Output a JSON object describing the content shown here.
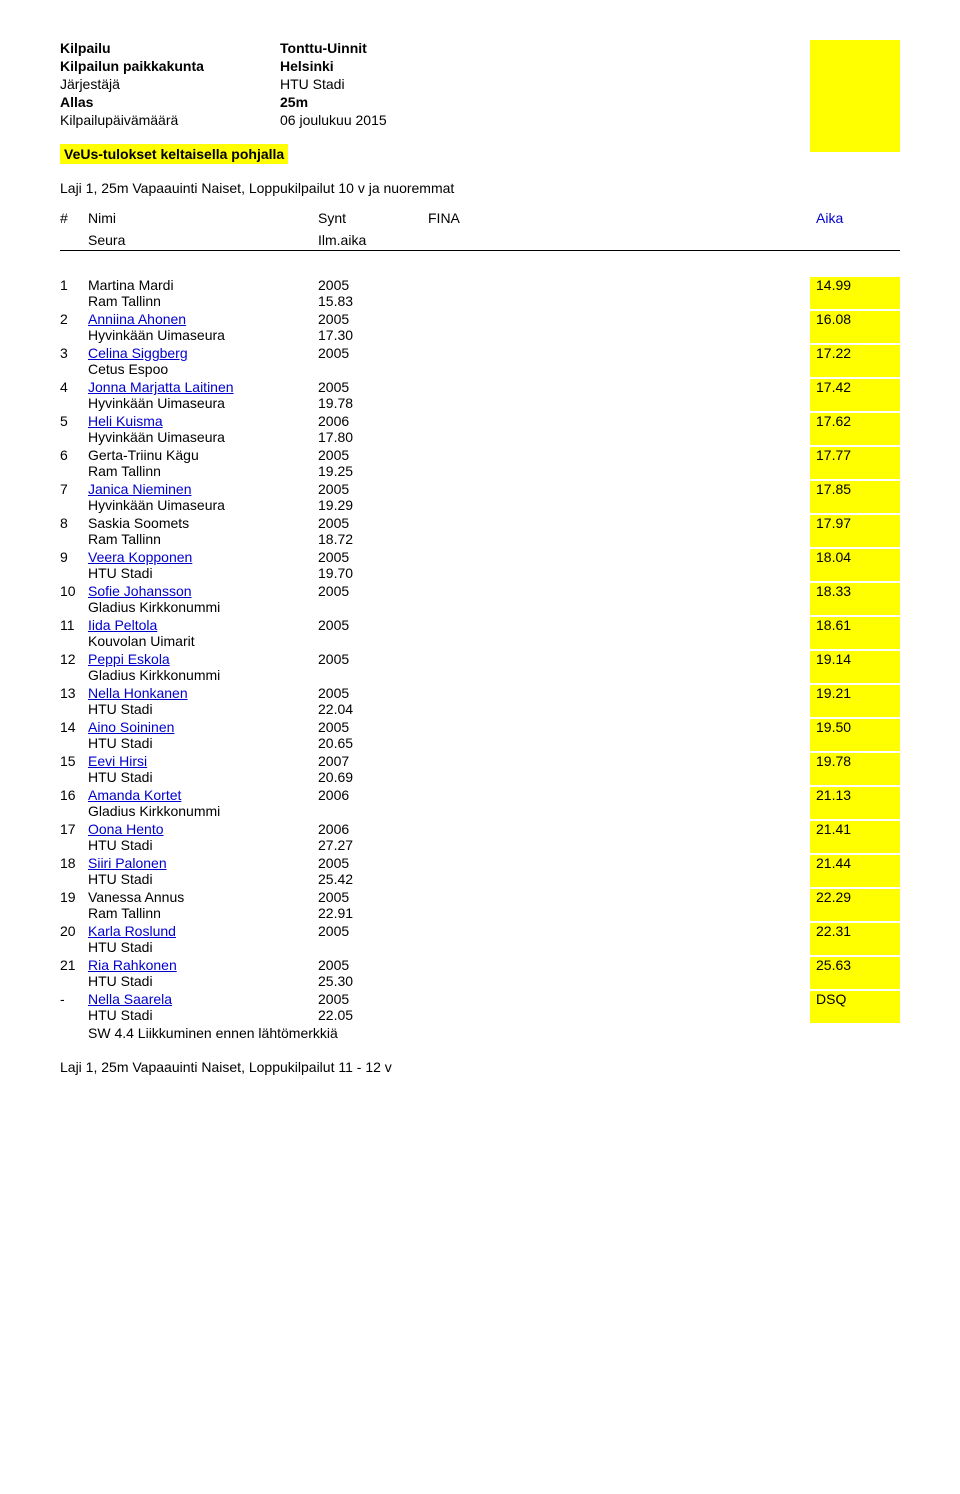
{
  "header": {
    "rows": [
      {
        "label": "Kilpailu",
        "value": "Tonttu-Uinnit",
        "bold": true
      },
      {
        "label": "Kilpailun paikkakunta",
        "value": "Helsinki",
        "bold": true
      },
      {
        "label": "Järjestäjä",
        "value": "HTU Stadi",
        "bold": false
      },
      {
        "label": "Allas",
        "value": "25m",
        "bold": true
      },
      {
        "label": "Kilpailupäivämäärä",
        "value": "06 joulukuu 2015",
        "bold": false
      }
    ],
    "highlight": "VeUs-tulokset keltaisella pohjalla"
  },
  "event": {
    "title": "Laji 1, 25m Vapaauinti Naiset, Loppukilpailut 10 v ja nuoremmat"
  },
  "columns": {
    "rank": "#",
    "name": "Nimi",
    "synt": "Synt",
    "fina": "FINA",
    "aika": "Aika",
    "seura": "Seura",
    "ilm": "Ilm.aika"
  },
  "results": [
    {
      "rank": "1",
      "name": "Martina Mardi",
      "link": false,
      "year": "2005",
      "aika": "14.99",
      "club": "Ram Tallinn",
      "ilm": "15.83"
    },
    {
      "rank": "2",
      "name": "Anniina Ahonen",
      "link": true,
      "year": "2005",
      "aika": "16.08",
      "club": "Hyvinkään Uimaseura",
      "ilm": "17.30"
    },
    {
      "rank": "3",
      "name": "Celina Siggberg",
      "link": true,
      "year": "2005",
      "aika": "17.22",
      "club": "Cetus Espoo",
      "ilm": ""
    },
    {
      "rank": "4",
      "name": "Jonna Marjatta Laitinen",
      "link": true,
      "year": "2005",
      "aika": "17.42",
      "club": "Hyvinkään Uimaseura",
      "ilm": "19.78"
    },
    {
      "rank": "5",
      "name": "Heli Kuisma",
      "link": true,
      "year": "2006",
      "aika": "17.62",
      "club": "Hyvinkään Uimaseura",
      "ilm": "17.80"
    },
    {
      "rank": "6",
      "name": "Gerta-Triinu Kägu",
      "link": false,
      "year": "2005",
      "aika": "17.77",
      "club": "Ram Tallinn",
      "ilm": "19.25"
    },
    {
      "rank": "7",
      "name": "Janica Nieminen",
      "link": true,
      "year": "2005",
      "aika": "17.85",
      "club": "Hyvinkään Uimaseura",
      "ilm": "19.29"
    },
    {
      "rank": "8",
      "name": "Saskia Soomets",
      "link": false,
      "year": "2005",
      "aika": "17.97",
      "club": "Ram Tallinn",
      "ilm": "18.72"
    },
    {
      "rank": "9",
      "name": "Veera Kopponen",
      "link": true,
      "year": "2005",
      "aika": "18.04",
      "club": "HTU Stadi",
      "ilm": "19.70"
    },
    {
      "rank": "10",
      "name": "Sofie Johansson",
      "link": true,
      "year": "2005",
      "aika": "18.33",
      "club": "Gladius Kirkkonummi",
      "ilm": ""
    },
    {
      "rank": "11",
      "name": "Iida Peltola",
      "link": true,
      "year": "2005",
      "aika": "18.61",
      "club": "Kouvolan Uimarit",
      "ilm": ""
    },
    {
      "rank": "12",
      "name": "Peppi Eskola",
      "link": true,
      "year": "2005",
      "aika": "19.14",
      "club": "Gladius Kirkkonummi",
      "ilm": ""
    },
    {
      "rank": "13",
      "name": "Nella Honkanen",
      "link": true,
      "year": "2005",
      "aika": "19.21",
      "club": "HTU Stadi",
      "ilm": "22.04"
    },
    {
      "rank": "14",
      "name": "Aino Soininen",
      "link": true,
      "year": "2005",
      "aika": "19.50",
      "club": "HTU Stadi",
      "ilm": "20.65"
    },
    {
      "rank": "15",
      "name": "Eevi Hirsi",
      "link": true,
      "year": "2007",
      "aika": "19.78",
      "club": "HTU Stadi",
      "ilm": "20.69"
    },
    {
      "rank": "16",
      "name": "Amanda Kortet",
      "link": true,
      "year": "2006",
      "aika": "21.13",
      "club": "Gladius Kirkkonummi",
      "ilm": ""
    },
    {
      "rank": "17",
      "name": "Oona Hento",
      "link": true,
      "year": "2006",
      "aika": "21.41",
      "club": "HTU Stadi",
      "ilm": "27.27"
    },
    {
      "rank": "18",
      "name": "Siiri Palonen",
      "link": true,
      "year": "2005",
      "aika": "21.44",
      "club": "HTU Stadi",
      "ilm": "25.42"
    },
    {
      "rank": "19",
      "name": "Vanessa Annus",
      "link": false,
      "year": "2005",
      "aika": "22.29",
      "club": "Ram Tallinn",
      "ilm": "22.91"
    },
    {
      "rank": "20",
      "name": "Karla Roslund",
      "link": true,
      "year": "2005",
      "aika": "22.31",
      "club": "HTU Stadi",
      "ilm": ""
    },
    {
      "rank": "21",
      "name": "Ria Rahkonen",
      "link": true,
      "year": "2005",
      "aika": "25.63",
      "club": "HTU Stadi",
      "ilm": "25.30"
    },
    {
      "rank": "-",
      "name": "Nella Saarela",
      "link": true,
      "year": "2005",
      "aika": "DSQ",
      "club": "HTU Stadi",
      "ilm": "22.05",
      "note": "SW 4.4 Liikkuminen ennen lähtömerkkiä"
    }
  ],
  "footer": {
    "next_event": "Laji 1, 25m Vapaauinti Naiset, Loppukilpailut 11 - 12 v"
  },
  "layout": {
    "sidebar_top_height": 112,
    "sidebar_color": "#ffff00",
    "link_color": "#0000cc"
  }
}
